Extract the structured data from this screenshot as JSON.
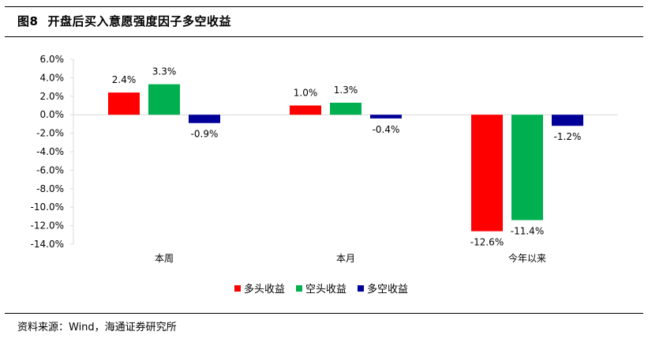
{
  "figure": {
    "label": "图8",
    "title": "开盘后买入意愿强度因子多空收益"
  },
  "source": "资料来源：Wind，海通证券研究所",
  "chart_data": {
    "type": "bar",
    "categories": [
      "本周",
      "本月",
      "今年以来"
    ],
    "series": [
      {
        "name": "多头收益",
        "color": "#ff0000",
        "values": [
          2.4,
          1.0,
          -12.6
        ],
        "labels": [
          "2.4%",
          "1.0%",
          "-12.6%"
        ]
      },
      {
        "name": "空头收益",
        "color": "#00b050",
        "values": [
          3.3,
          1.3,
          -11.4
        ],
        "labels": [
          "3.3%",
          "1.3%",
          "-11.4%"
        ]
      },
      {
        "name": "多空收益",
        "color": "#000099",
        "values": [
          -0.9,
          -0.4,
          -1.2
        ],
        "labels": [
          "-0.9%",
          "-0.4%",
          "-1.2%"
        ]
      }
    ],
    "ylim": [
      -14,
      6
    ],
    "yticks": [
      6,
      4,
      2,
      0,
      -2,
      -4,
      -6,
      -8,
      -10,
      -12,
      -14
    ],
    "ytick_labels": [
      "6.0%",
      "4.0%",
      "2.0%",
      "0.0%",
      "-2.0%",
      "-4.0%",
      "-6.0%",
      "-8.0%",
      "-10.0%",
      "-12.0%",
      "-14.0%"
    ],
    "grid": false,
    "legend_position": "bottom"
  }
}
